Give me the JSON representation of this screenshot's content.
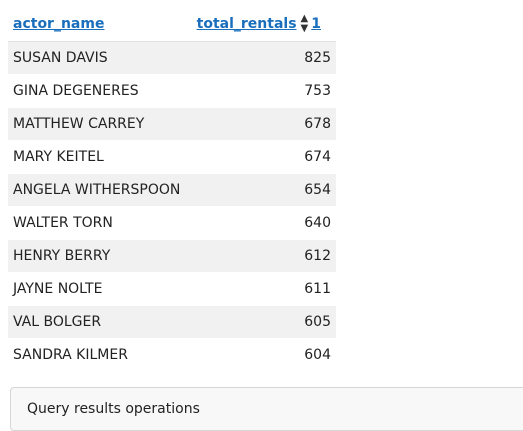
{
  "table": {
    "columns": {
      "actor_name": "actor_name",
      "total_rentals": "total_rentals",
      "sort_index": "1"
    },
    "rows": [
      {
        "actor_name": "SUSAN DAVIS",
        "total_rentals": "825"
      },
      {
        "actor_name": "GINA DEGENERES",
        "total_rentals": "753"
      },
      {
        "actor_name": "MATTHEW CARREY",
        "total_rentals": "678"
      },
      {
        "actor_name": "MARY KEITEL",
        "total_rentals": "674"
      },
      {
        "actor_name": "ANGELA WITHERSPOON",
        "total_rentals": "654"
      },
      {
        "actor_name": "WALTER TORN",
        "total_rentals": "640"
      },
      {
        "actor_name": "HENRY BERRY",
        "total_rentals": "612"
      },
      {
        "actor_name": "JAYNE NOLTE",
        "total_rentals": "611"
      },
      {
        "actor_name": "VAL BOLGER",
        "total_rentals": "605"
      },
      {
        "actor_name": "SANDRA KILMER",
        "total_rentals": "604"
      }
    ]
  },
  "operations": {
    "title": "Query results operations"
  },
  "icons": {
    "sort": "sort-both-arrows-icon"
  },
  "colors": {
    "link": "#1a6fbd",
    "row_alt": "#f1f1f1"
  }
}
